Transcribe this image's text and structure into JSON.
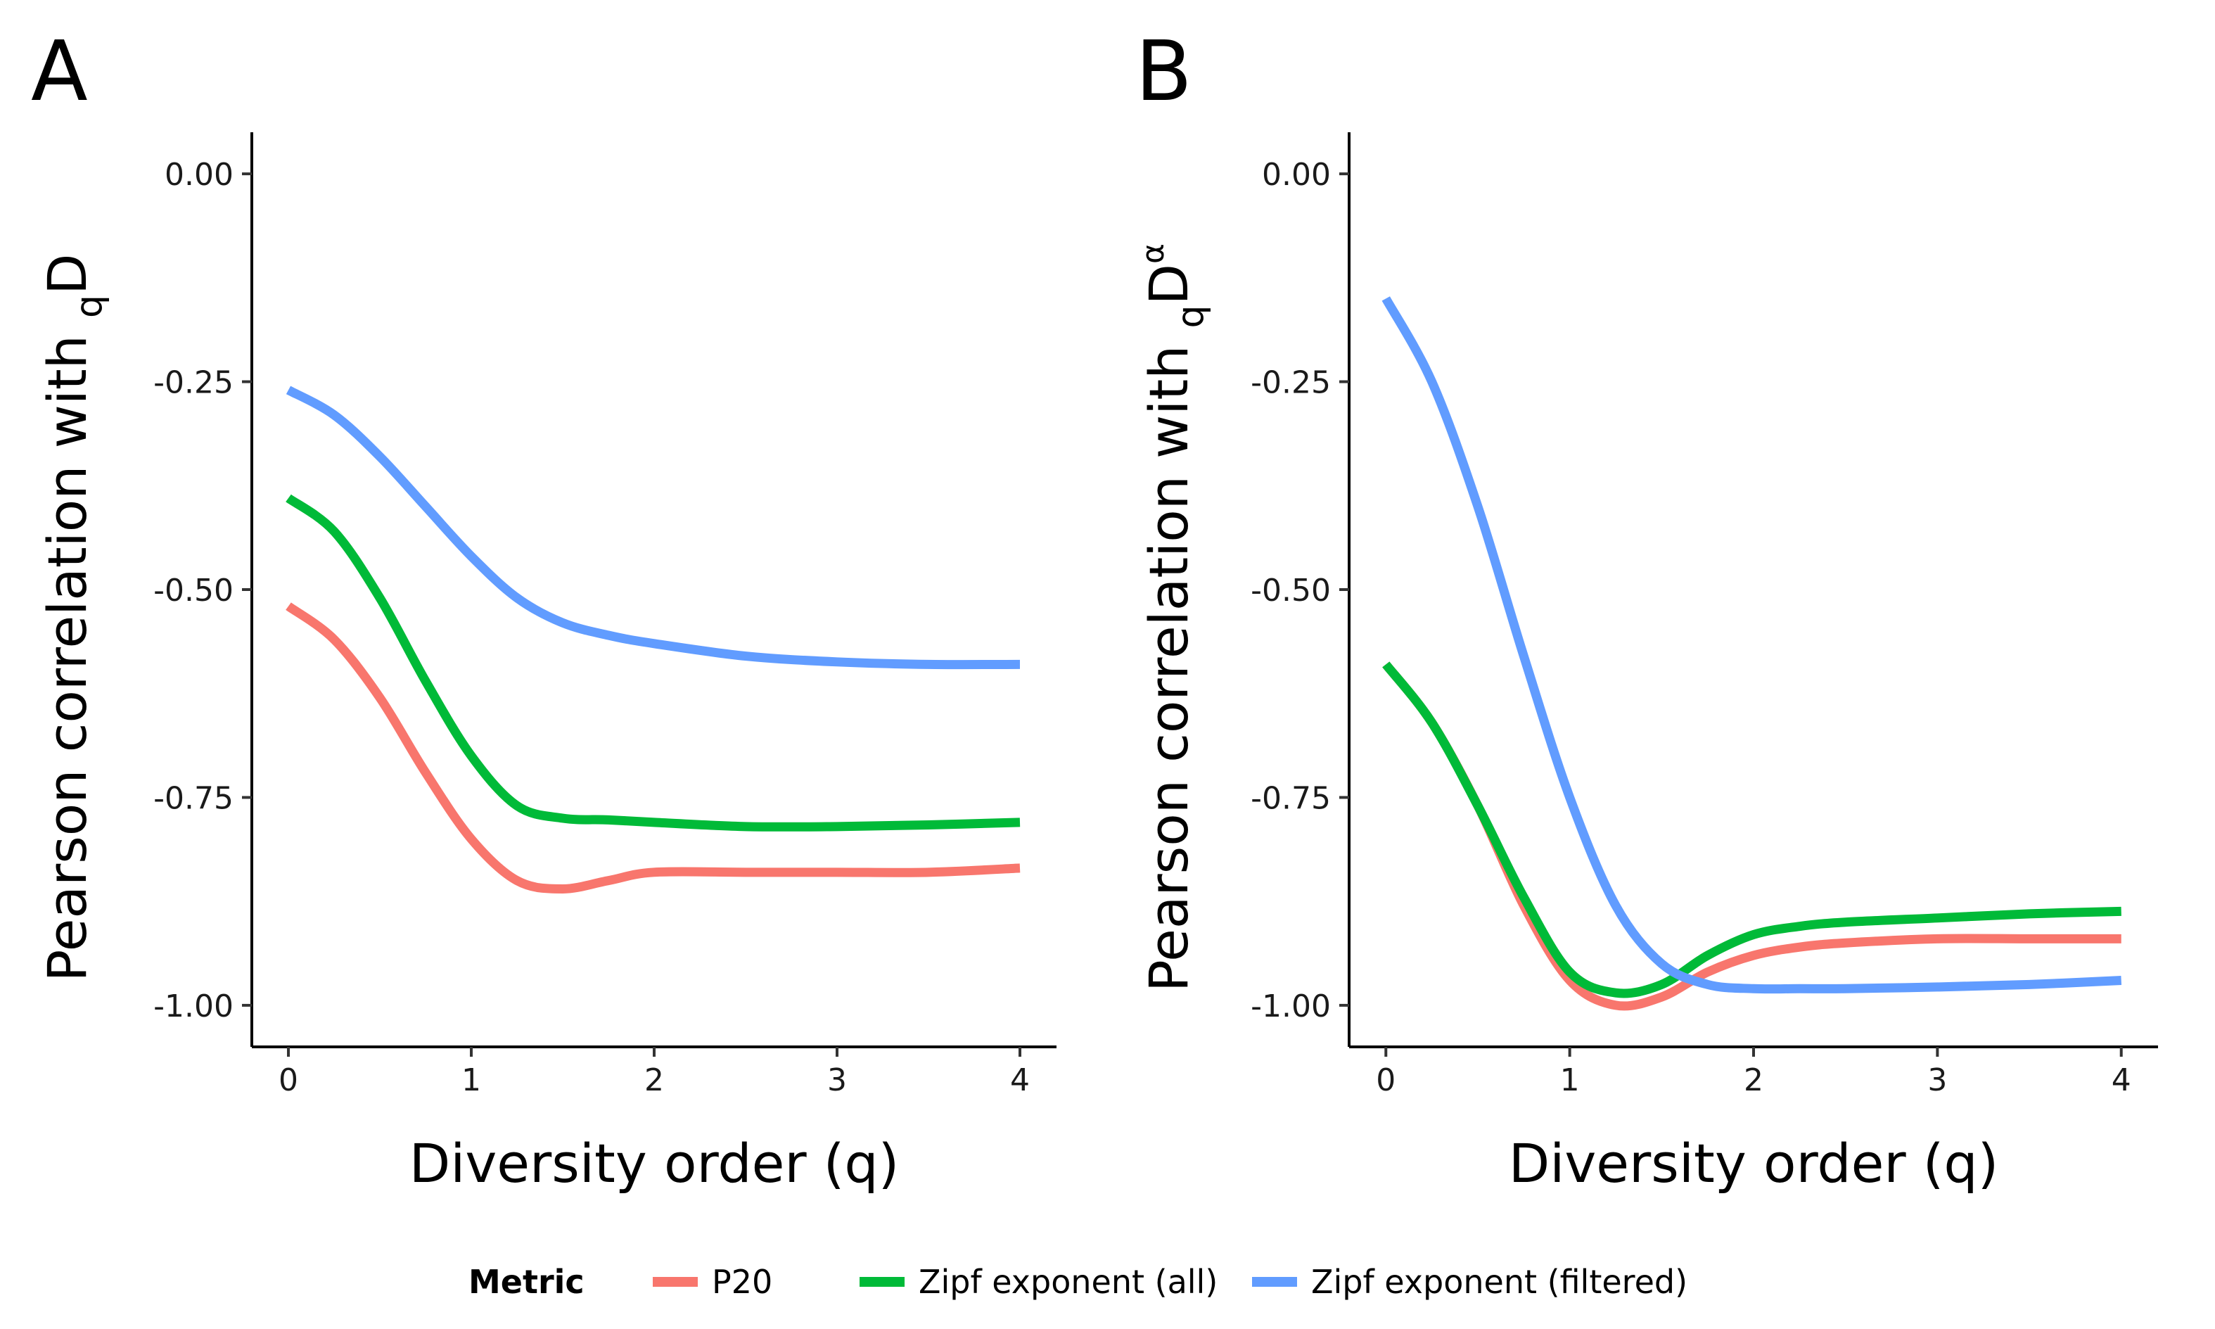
{
  "chart_data": [
    {
      "panel_label": "A",
      "type": "line",
      "xlabel": "Diversity order (q)",
      "ylabel_text": "Pearson correlation with ",
      "ylabel_sub": "q",
      "ylabel_main": "D",
      "ylabel_sup": "",
      "xlim": [
        -0.2,
        4.2
      ],
      "ylim": [
        -1.05,
        0.05
      ],
      "x_ticks": [
        0,
        1,
        2,
        3,
        4
      ],
      "x_tick_labels": [
        "0",
        "1",
        "2",
        "3",
        "4"
      ],
      "y_ticks": [
        0.0,
        -0.25,
        -0.5,
        -0.75,
        -1.0
      ],
      "y_tick_labels": [
        "0.00",
        "-0.25",
        "-0.50",
        "-0.75",
        "-1.00"
      ],
      "x": [
        0,
        0.25,
        0.5,
        0.75,
        1.0,
        1.25,
        1.5,
        1.75,
        2.0,
        2.5,
        3.0,
        3.5,
        4.0
      ],
      "series": [
        {
          "name": "P20",
          "color": "#F8766D",
          "values": [
            -0.52,
            -0.56,
            -0.63,
            -0.72,
            -0.8,
            -0.85,
            -0.86,
            -0.85,
            -0.84,
            -0.84,
            -0.84,
            -0.84,
            -0.835
          ]
        },
        {
          "name": "Zipf exponent (all)",
          "color": "#00BA38",
          "values": [
            -0.39,
            -0.43,
            -0.51,
            -0.61,
            -0.7,
            -0.76,
            -0.775,
            -0.777,
            -0.78,
            -0.785,
            -0.785,
            -0.783,
            -0.78
          ]
        },
        {
          "name": "Zipf exponent (filtered)",
          "color": "#619CFF",
          "values": [
            -0.26,
            -0.29,
            -0.34,
            -0.4,
            -0.46,
            -0.51,
            -0.54,
            -0.555,
            -0.565,
            -0.58,
            -0.587,
            -0.59,
            -0.59
          ]
        }
      ]
    },
    {
      "panel_label": "B",
      "type": "line",
      "xlabel": "Diversity order (q)",
      "ylabel_text": "Pearson correlation with ",
      "ylabel_sub": "q",
      "ylabel_main": "D",
      "ylabel_sup": "α",
      "xlim": [
        -0.2,
        4.2
      ],
      "ylim": [
        -1.05,
        0.05
      ],
      "x_ticks": [
        0,
        1,
        2,
        3,
        4
      ],
      "x_tick_labels": [
        "0",
        "1",
        "2",
        "3",
        "4"
      ],
      "y_ticks": [
        0.0,
        -0.25,
        -0.5,
        -0.75,
        -1.0
      ],
      "y_tick_labels": [
        "0.00",
        "-0.25",
        "-0.50",
        "-0.75",
        "-1.00"
      ],
      "x": [
        0,
        0.25,
        0.5,
        0.75,
        1.0,
        1.25,
        1.5,
        1.75,
        2.0,
        2.25,
        2.5,
        3.0,
        3.5,
        4.0
      ],
      "series": [
        {
          "name": "P20",
          "color": "#F8766D",
          "values": [
            -0.59,
            -0.66,
            -0.76,
            -0.88,
            -0.97,
            -1.0,
            -0.99,
            -0.96,
            -0.94,
            -0.93,
            -0.925,
            -0.92,
            -0.92,
            -0.92
          ]
        },
        {
          "name": "Zipf exponent (all)",
          "color": "#00BA38",
          "values": [
            -0.59,
            -0.66,
            -0.76,
            -0.87,
            -0.96,
            -0.985,
            -0.975,
            -0.94,
            -0.915,
            -0.905,
            -0.9,
            -0.895,
            -0.89,
            -0.887
          ]
        },
        {
          "name": "Zipf exponent (filtered)",
          "color": "#619CFF",
          "values": [
            -0.15,
            -0.25,
            -0.4,
            -0.58,
            -0.75,
            -0.88,
            -0.95,
            -0.975,
            -0.98,
            -0.98,
            -0.98,
            -0.978,
            -0.975,
            -0.97
          ]
        }
      ]
    }
  ],
  "legend": {
    "title": "Metric",
    "items": [
      {
        "label": "P20",
        "color": "#F8766D"
      },
      {
        "label": "Zipf exponent (all)",
        "color": "#00BA38"
      },
      {
        "label": "Zipf exponent (filtered)",
        "color": "#619CFF"
      }
    ]
  }
}
